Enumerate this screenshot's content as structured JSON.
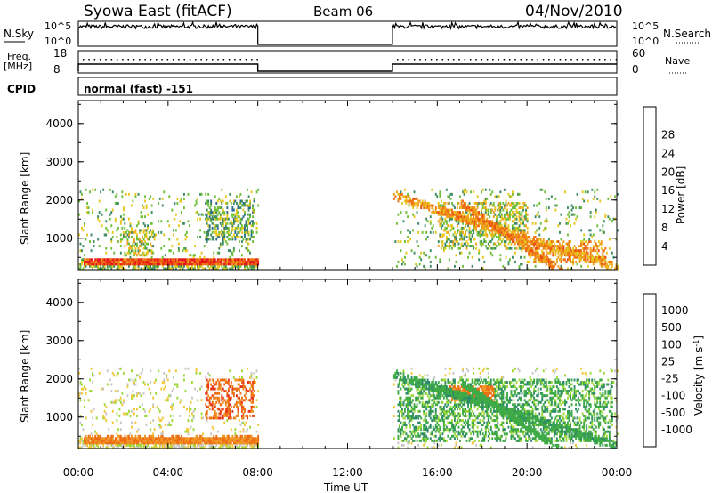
{
  "header": {
    "station": "Syowa East (fitACF)",
    "beam": "Beam 06",
    "date": "04/Nov/2010"
  },
  "panels": {
    "nsky_label": "N.Sky",
    "nsky_ticks": [
      "10^5",
      "10^0"
    ],
    "nsearch_label": "N.Search",
    "nsearch_ticks": [
      "10^5",
      "10^0"
    ],
    "freq_label_1": "Freq.",
    "freq_label_2": "[MHz]",
    "freq_ticks": [
      "18",
      "8"
    ],
    "nave_label": "Nave",
    "nave_ticks": [
      "60",
      "0"
    ],
    "cpid_label": "CPID",
    "cpid_value": "normal (fast) -151"
  },
  "chart_data": [
    {
      "type": "heatmap",
      "name": "power",
      "ylabel": "Slant Range [km]",
      "yticks": [
        "1000",
        "2000",
        "3000",
        "4000"
      ],
      "ylim": [
        180,
        4600
      ],
      "xlim": [
        0,
        24
      ],
      "xlabel": "Time UT",
      "xticks": [
        "00:00",
        "04:00",
        "08:00",
        "12:00",
        "16:00",
        "20:00",
        "00:00"
      ],
      "colorbar": {
        "label": "Power [dB]",
        "ticks": [
          "4",
          "8",
          "12",
          "16",
          "20",
          "24",
          "28"
        ],
        "colors": [
          "#0a1ee6",
          "#2843aa",
          "#2f6b8e",
          "#3e8c63",
          "#6fbf3a",
          "#e6c81e",
          "#f0a21e",
          "#ee7414",
          "#e84a10",
          "#e6141e"
        ]
      },
      "data_gaps_ut": [
        [
          8,
          14
        ]
      ],
      "features": [
        {
          "t0": 0.2,
          "t1": 8.0,
          "r0": 250,
          "r1": 450,
          "level": 0.9
        },
        {
          "t0": 5.6,
          "t1": 7.8,
          "r0": 900,
          "r1": 2000,
          "level": 0.4
        },
        {
          "t0": 2.0,
          "t1": 3.4,
          "r0": 500,
          "r1": 1200,
          "level": 0.5
        },
        {
          "t0": 16.0,
          "t1": 20.0,
          "r0": 700,
          "r1": 1900,
          "level": 0.5
        },
        {
          "t0": 20.0,
          "t1": 23.5,
          "r0": 300,
          "r1": 900,
          "level": 0.7
        }
      ]
    },
    {
      "type": "heatmap",
      "name": "velocity",
      "ylabel": "Slant Range [km]",
      "yticks": [
        "1000",
        "2000",
        "3000",
        "4000"
      ],
      "ylim": [
        180,
        4600
      ],
      "xlim": [
        0,
        24
      ],
      "xlabel": "Time UT",
      "xticks": [
        "00:00",
        "04:00",
        "08:00",
        "12:00",
        "16:00",
        "20:00",
        "00:00"
      ],
      "colorbar": {
        "label": "Velocity [m s^-1]",
        "ticks": [
          "1000",
          "500",
          "100",
          "25",
          "-25",
          "-100",
          "-500",
          "-1000"
        ],
        "colors": [
          "#1e3cb4",
          "#2d64a0",
          "#2e8a6a",
          "#3faa46",
          "#9ed83a",
          "#c8c8c8",
          "#f2c83c",
          "#f09628",
          "#ee6e14",
          "#e8321e",
          "#e6141e"
        ]
      },
      "data_gaps_ut": [
        [
          8,
          14
        ]
      ],
      "features": [
        {
          "t0": 0.2,
          "t1": 8.0,
          "r0": 250,
          "r1": 500,
          "level": -0.5
        },
        {
          "t0": 5.6,
          "t1": 7.8,
          "r0": 900,
          "r1": 2000,
          "level": -0.6
        },
        {
          "t0": 14.2,
          "t1": 23.8,
          "r0": 300,
          "r1": 2000,
          "level": 0.4
        },
        {
          "t0": 16.5,
          "t1": 18.5,
          "r0": 1400,
          "r1": 1800,
          "level": -0.5
        }
      ]
    }
  ],
  "axis": {
    "xticks": [
      "00:00",
      "04:00",
      "08:00",
      "12:00",
      "16:00",
      "20:00",
      "00:00"
    ],
    "xlabel": "Time UT"
  }
}
